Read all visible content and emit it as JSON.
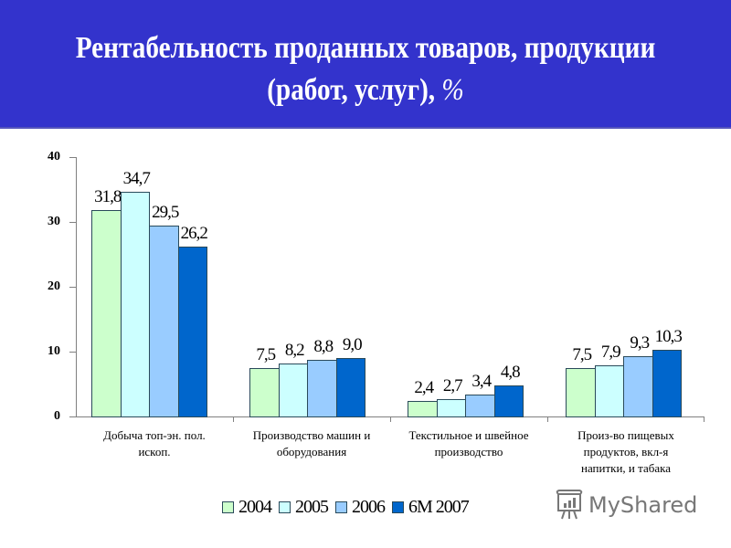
{
  "header": {
    "title_line1": "Рентабельность проданных товаров, продукции",
    "title_line2": "(работ, услуг),",
    "title_unit": "%",
    "background": "#3333cc"
  },
  "chart_data": {
    "type": "bar",
    "title": "Рентабельность проданных товаров, продукции (работ, услуг), %",
    "xlabel": "",
    "ylabel": "",
    "ylim": [
      0,
      40
    ],
    "yticks": [
      "0",
      "10",
      "20",
      "30",
      "40"
    ],
    "grid": false,
    "legend_position": "bottom",
    "categories": [
      "Добыча топ-эн. пол. ископ.",
      "Производство машин и оборудования",
      "Текстильное и швейное производство",
      "Произ-во пищевых продуктов, вкл-я напитки, и табака"
    ],
    "series": [
      {
        "name": "2004",
        "color": "#ccffcc",
        "values": [
          31.8,
          7.5,
          2.4,
          7.5
        ],
        "labels": [
          "31,8",
          "7,5",
          "2,4",
          "7,5"
        ]
      },
      {
        "name": "2005",
        "color": "#ccffff",
        "values": [
          34.7,
          8.2,
          2.7,
          7.9
        ],
        "labels": [
          "34,7",
          "8,2",
          "2,7",
          "7,9"
        ]
      },
      {
        "name": "2006",
        "color": "#99ccff",
        "values": [
          29.5,
          8.8,
          3.4,
          9.3
        ],
        "labels": [
          "29,5",
          "8,8",
          "3,4",
          "9,3"
        ]
      },
      {
        "name": "6M 2007",
        "color": "#0066cc",
        "values": [
          26.2,
          9.0,
          4.8,
          10.3
        ],
        "labels": [
          "26,2",
          "9,0",
          "4,8",
          "10,3"
        ]
      }
    ]
  },
  "categories_display": [
    {
      "line1": "Добыча топ-эн. пол.",
      "line2": "ископ.",
      "line3": ""
    },
    {
      "line1": "Производство машин и",
      "line2": "оборудования",
      "line3": ""
    },
    {
      "line1": "Текстильное и швейное",
      "line2": "производство",
      "line3": ""
    },
    {
      "line1": "Произ-во пищевых",
      "line2": "продуктов, вкл-я",
      "line3": "напитки, и табака"
    }
  ],
  "legend": {
    "items": [
      "2004",
      "2005",
      "2006",
      "6M 2007"
    ]
  },
  "watermark": {
    "text": "MyShared",
    "icon": "presentation-board-icon"
  }
}
